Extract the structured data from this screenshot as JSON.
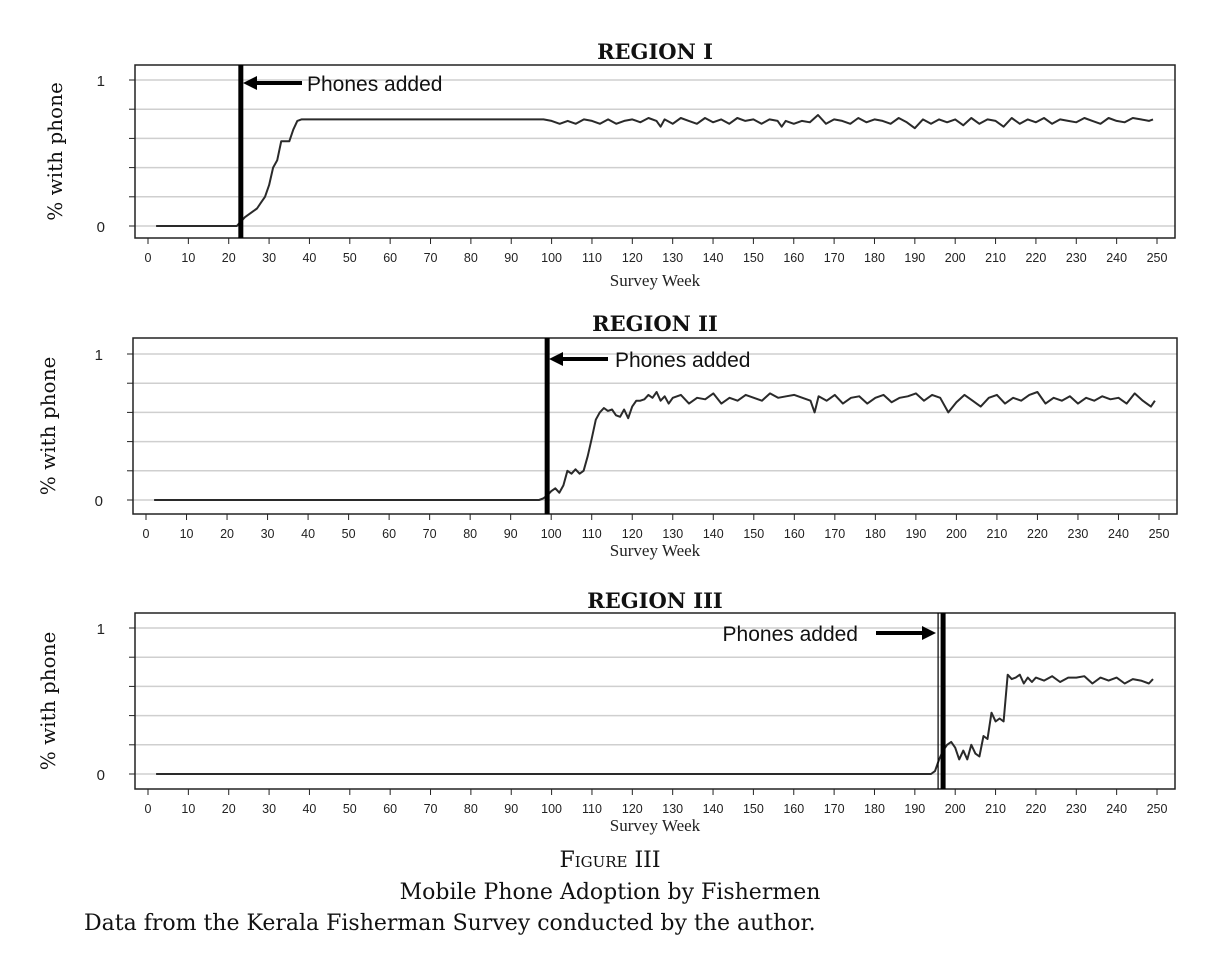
{
  "chart_data": [
    {
      "type": "line",
      "title": "REGION I",
      "xlabel": "Survey Week",
      "ylabel": "% with phone",
      "xlim": [
        0,
        255
      ],
      "ylim": [
        -0.05,
        1.1
      ],
      "xticks": [
        0,
        10,
        20,
        30,
        40,
        50,
        60,
        70,
        80,
        90,
        100,
        110,
        120,
        130,
        140,
        150,
        160,
        170,
        180,
        190,
        200,
        210,
        220,
        230,
        240,
        250
      ],
      "yticks": [
        0,
        1
      ],
      "grid": "horizontal",
      "phones_added_week": 23,
      "annotation": "Phones added",
      "series": [
        {
          "x": [
            2,
            20,
            22,
            23,
            24,
            25,
            26,
            27,
            28,
            29,
            30,
            31,
            32,
            33,
            34,
            35,
            36,
            37,
            38,
            40,
            60,
            80,
            98,
            100,
            102,
            104,
            106,
            108,
            110,
            112,
            114,
            116,
            118,
            120,
            122,
            124,
            126,
            127,
            128,
            130,
            132,
            134,
            136,
            138,
            140,
            142,
            144,
            146,
            148,
            150,
            152,
            154,
            156,
            157,
            158,
            160,
            162,
            164,
            166,
            168,
            170,
            172,
            174,
            176,
            178,
            180,
            182,
            184,
            186,
            188,
            190,
            192,
            194,
            196,
            198,
            200,
            202,
            204,
            206,
            208,
            210,
            212,
            214,
            216,
            218,
            220,
            222,
            224,
            226,
            228,
            230,
            232,
            234,
            236,
            238,
            240,
            242,
            244,
            246,
            248,
            249
          ],
          "y": [
            0,
            0,
            0,
            0.03,
            0.06,
            0.08,
            0.1,
            0.12,
            0.16,
            0.2,
            0.28,
            0.4,
            0.45,
            0.58,
            0.58,
            0.58,
            0.66,
            0.72,
            0.73,
            0.73,
            0.73,
            0.73,
            0.73,
            0.72,
            0.7,
            0.72,
            0.7,
            0.73,
            0.72,
            0.7,
            0.73,
            0.7,
            0.72,
            0.73,
            0.71,
            0.74,
            0.72,
            0.68,
            0.73,
            0.7,
            0.74,
            0.72,
            0.7,
            0.74,
            0.71,
            0.73,
            0.7,
            0.74,
            0.72,
            0.73,
            0.7,
            0.73,
            0.72,
            0.68,
            0.72,
            0.7,
            0.72,
            0.71,
            0.76,
            0.7,
            0.73,
            0.72,
            0.7,
            0.74,
            0.71,
            0.73,
            0.72,
            0.7,
            0.74,
            0.71,
            0.67,
            0.73,
            0.7,
            0.73,
            0.71,
            0.73,
            0.69,
            0.74,
            0.7,
            0.73,
            0.72,
            0.68,
            0.74,
            0.7,
            0.73,
            0.71,
            0.74,
            0.7,
            0.73,
            0.72,
            0.71,
            0.74,
            0.72,
            0.7,
            0.74,
            0.72,
            0.71,
            0.74,
            0.73,
            0.72,
            0.73
          ]
        }
      ]
    },
    {
      "type": "line",
      "title": "REGION II",
      "xlabel": "Survey Week",
      "ylabel": "% with phone",
      "xlim": [
        0,
        255
      ],
      "ylim": [
        -0.1,
        1.1
      ],
      "xticks": [
        0,
        10,
        20,
        30,
        40,
        50,
        60,
        70,
        80,
        90,
        100,
        110,
        120,
        130,
        140,
        150,
        160,
        170,
        180,
        190,
        200,
        210,
        220,
        230,
        240,
        250
      ],
      "yticks": [
        0,
        1
      ],
      "grid": "horizontal",
      "phones_added_week": 99,
      "annotation": "Phones added",
      "series": [
        {
          "x": [
            2,
            20,
            40,
            60,
            80,
            97,
            98,
            99,
            100,
            101,
            102,
            103,
            104,
            105,
            106,
            107,
            108,
            109,
            110,
            111,
            112,
            113,
            114,
            115,
            116,
            117,
            118,
            119,
            120,
            121,
            122,
            123,
            124,
            125,
            126,
            127,
            128,
            129,
            130,
            132,
            134,
            136,
            138,
            140,
            142,
            144,
            146,
            148,
            150,
            152,
            154,
            156,
            158,
            160,
            162,
            164,
            165,
            166,
            168,
            170,
            172,
            174,
            176,
            178,
            180,
            182,
            184,
            186,
            188,
            190,
            192,
            194,
            196,
            198,
            200,
            202,
            204,
            206,
            208,
            210,
            212,
            214,
            216,
            218,
            220,
            222,
            224,
            226,
            228,
            230,
            232,
            234,
            236,
            238,
            240,
            242,
            244,
            246,
            248,
            249
          ],
          "y": [
            0,
            0,
            0,
            0,
            0,
            0,
            0.01,
            0.03,
            0.06,
            0.08,
            0.05,
            0.1,
            0.2,
            0.18,
            0.21,
            0.18,
            0.2,
            0.3,
            0.42,
            0.55,
            0.6,
            0.63,
            0.61,
            0.62,
            0.58,
            0.57,
            0.62,
            0.56,
            0.64,
            0.68,
            0.68,
            0.69,
            0.72,
            0.7,
            0.74,
            0.68,
            0.71,
            0.66,
            0.7,
            0.72,
            0.66,
            0.7,
            0.69,
            0.73,
            0.66,
            0.7,
            0.68,
            0.72,
            0.7,
            0.68,
            0.73,
            0.7,
            0.71,
            0.72,
            0.7,
            0.68,
            0.6,
            0.71,
            0.68,
            0.72,
            0.66,
            0.7,
            0.71,
            0.66,
            0.7,
            0.72,
            0.67,
            0.7,
            0.71,
            0.73,
            0.68,
            0.72,
            0.7,
            0.6,
            0.67,
            0.72,
            0.68,
            0.64,
            0.7,
            0.72,
            0.66,
            0.7,
            0.68,
            0.72,
            0.74,
            0.66,
            0.7,
            0.68,
            0.71,
            0.66,
            0.7,
            0.68,
            0.71,
            0.69,
            0.7,
            0.66,
            0.73,
            0.68,
            0.64,
            0.68
          ]
        }
      ]
    },
    {
      "type": "line",
      "title": "REGION III",
      "xlabel": "Survey Week",
      "ylabel": "% with phone",
      "xlim": [
        0,
        255
      ],
      "ylim": [
        -0.1,
        1.1
      ],
      "xticks": [
        0,
        10,
        20,
        30,
        40,
        50,
        60,
        70,
        80,
        90,
        100,
        110,
        120,
        130,
        140,
        150,
        160,
        170,
        180,
        190,
        200,
        210,
        220,
        230,
        240,
        250
      ],
      "yticks": [
        0,
        1
      ],
      "grid": "horizontal",
      "phones_added_week": 197,
      "annotation": "Phones added",
      "series": [
        {
          "x": [
            2,
            40,
            80,
            120,
            160,
            194,
            195,
            196,
            197,
            198,
            199,
            200,
            201,
            202,
            203,
            204,
            205,
            206,
            207,
            208,
            209,
            210,
            211,
            212,
            213,
            214,
            215,
            216,
            217,
            218,
            219,
            220,
            222,
            224,
            226,
            228,
            230,
            232,
            234,
            236,
            238,
            240,
            242,
            244,
            246,
            248,
            249
          ],
          "y": [
            0,
            0,
            0,
            0,
            0,
            0,
            0.02,
            0.1,
            0.16,
            0.2,
            0.22,
            0.18,
            0.1,
            0.16,
            0.1,
            0.2,
            0.14,
            0.12,
            0.26,
            0.24,
            0.42,
            0.36,
            0.38,
            0.36,
            0.68,
            0.65,
            0.66,
            0.68,
            0.62,
            0.66,
            0.63,
            0.66,
            0.64,
            0.67,
            0.63,
            0.66,
            0.66,
            0.67,
            0.62,
            0.66,
            0.64,
            0.66,
            0.62,
            0.65,
            0.64,
            0.62,
            0.65
          ]
        }
      ]
    }
  ],
  "caption": {
    "figure": "Figure III",
    "title": "Mobile Phone Adoption by Fishermen",
    "note": "Data from the Kerala Fisherman Survey conducted by the author."
  }
}
